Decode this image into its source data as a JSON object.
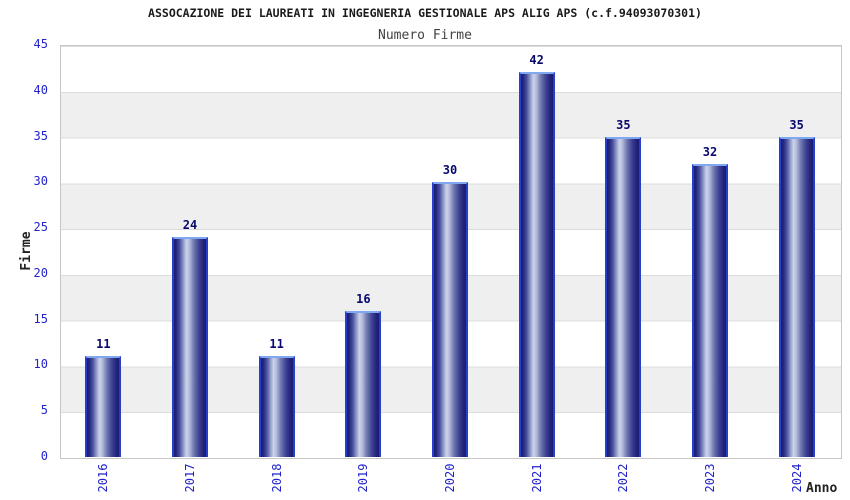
{
  "header": {
    "title": "ASSOCAZIONE DEI LAUREATI IN INGEGNERIA GESTIONALE APS ALIG APS (c.f.94093070301)",
    "subtitle": "Numero Firme"
  },
  "chart_data": {
    "type": "bar",
    "title": "ASSOCAZIONE DEI LAUREATI IN INGEGNERIA GESTIONALE APS ALIG APS (c.f.94093070301)",
    "subtitle": "Numero Firme",
    "xlabel": "Anno",
    "ylabel": "Firme",
    "categories": [
      "2016",
      "2017",
      "2018",
      "2019",
      "2020",
      "2021",
      "2022",
      "2023",
      "2024"
    ],
    "values": [
      11,
      24,
      11,
      16,
      30,
      42,
      35,
      32,
      35
    ],
    "ylim": [
      0,
      45
    ],
    "yticks": [
      0,
      5,
      10,
      15,
      20,
      25,
      30,
      35,
      40,
      45
    ],
    "bar_value_labels": [
      11,
      24,
      11,
      16,
      30,
      42,
      35,
      32,
      35
    ],
    "legend": "none",
    "grid": "horizontal gridlines every 5 units with alternating white/gray bands",
    "colors": {
      "tick_label": "#2323cc",
      "value_label": "#08086e",
      "bar_dark": "#1b1b74",
      "bar_highlight": "#ced3ea",
      "bar_border_side": "#2640c9",
      "bar_border_top": "#7fa8f0",
      "band_gray": "#efefef",
      "gridline": "#dcdcdc",
      "plot_border": "#c6c6c6",
      "title_color": "#1a1a1a",
      "subtitle_color": "#444444",
      "axis_title_color": "#222222"
    }
  }
}
